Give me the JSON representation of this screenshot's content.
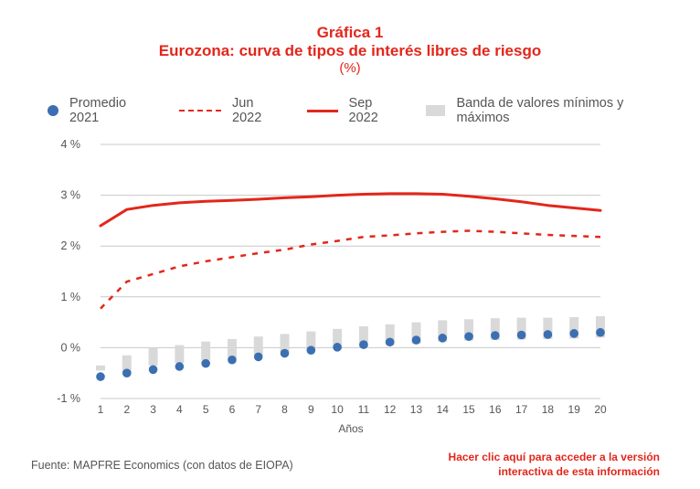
{
  "header": {
    "title": "Gráfica 1",
    "subtitle": "Eurozona: curva de tipos de interés libres de riesgo",
    "unit": "(%)"
  },
  "legend": {
    "promedio": "Promedio 2021",
    "jun": "Jun 2022",
    "sep": "Sep 2022",
    "banda": "Banda de valores mínimos y máximos"
  },
  "footer": {
    "source": "Fuente: MAPFRE Economics (con datos de EIOPA)",
    "link_line1": "Hacer clic aquí para acceder a la versión",
    "link_line2": "interactiva de esta información"
  },
  "colors": {
    "accent": "#e3261b",
    "promedio": "#3b6fb1",
    "band": "#d9d9d9",
    "grid": "#c8c8c8"
  },
  "chart_data": {
    "type": "line",
    "xlabel": "Años",
    "ylabel": "",
    "x": [
      1,
      2,
      3,
      4,
      5,
      6,
      7,
      8,
      9,
      10,
      11,
      12,
      13,
      14,
      15,
      16,
      17,
      18,
      19,
      20
    ],
    "xlim": [
      1,
      20
    ],
    "ylim": [
      -1,
      4
    ],
    "yticks": [
      -1,
      0,
      1,
      2,
      3,
      4
    ],
    "ytick_labels": [
      "-1 %",
      "0 %",
      "1 %",
      "2 %",
      "3 %",
      "4 %"
    ],
    "grid": true,
    "legend_position": "top",
    "series": [
      {
        "name": "Promedio 2021",
        "style": "dots",
        "values": [
          -0.57,
          -0.5,
          -0.43,
          -0.37,
          -0.31,
          -0.24,
          -0.18,
          -0.11,
          -0.05,
          0.01,
          0.06,
          0.11,
          0.15,
          0.19,
          0.22,
          0.24,
          0.25,
          0.26,
          0.28,
          0.3
        ]
      },
      {
        "name": "Jun 2022",
        "style": "dashed",
        "values": [
          0.77,
          1.3,
          1.45,
          1.6,
          1.7,
          1.78,
          1.86,
          1.93,
          2.03,
          2.1,
          2.18,
          2.21,
          2.25,
          2.28,
          2.3,
          2.28,
          2.25,
          2.22,
          2.2,
          2.18
        ]
      },
      {
        "name": "Sep 2022",
        "style": "solid",
        "values": [
          2.4,
          2.72,
          2.8,
          2.85,
          2.88,
          2.9,
          2.92,
          2.95,
          2.97,
          3.0,
          3.02,
          3.03,
          3.03,
          3.02,
          2.98,
          2.93,
          2.87,
          2.8,
          2.75,
          2.7
        ]
      },
      {
        "name": "Banda de valores mínimos y máximos",
        "style": "band",
        "low": [
          -0.45,
          -0.5,
          -0.35,
          -0.3,
          -0.25,
          -0.2,
          -0.15,
          -0.1,
          -0.06,
          -0.02,
          0.0,
          0.05,
          0.08,
          0.12,
          0.14,
          0.15,
          0.16,
          0.17,
          0.18,
          0.2
        ],
        "high": [
          -0.35,
          -0.15,
          0.0,
          0.05,
          0.12,
          0.17,
          0.22,
          0.27,
          0.32,
          0.37,
          0.42,
          0.46,
          0.5,
          0.54,
          0.56,
          0.58,
          0.59,
          0.59,
          0.6,
          0.62
        ]
      }
    ]
  }
}
